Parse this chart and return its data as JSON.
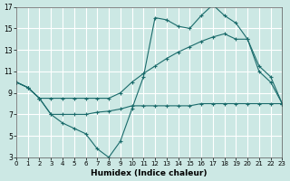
{
  "background_color": "#cce8e4",
  "grid_color": "#ffffff",
  "line_color": "#1a6b6b",
  "xlim": [
    0,
    23
  ],
  "ylim": [
    3,
    17
  ],
  "xticks": [
    0,
    1,
    2,
    3,
    4,
    5,
    6,
    7,
    8,
    9,
    10,
    11,
    12,
    13,
    14,
    15,
    16,
    17,
    18,
    19,
    20,
    21,
    22,
    23
  ],
  "yticks": [
    3,
    5,
    7,
    9,
    11,
    13,
    15,
    17
  ],
  "xlabel": "Humidex (Indice chaleur)",
  "line1_x": [
    0,
    1,
    2,
    3,
    4,
    5,
    6,
    7,
    8,
    9,
    10,
    11,
    12,
    13,
    14,
    15,
    16,
    17,
    18,
    19,
    20,
    21,
    22,
    23
  ],
  "line1_y": [
    10.0,
    9.5,
    8.5,
    7.0,
    6.2,
    5.7,
    5.2,
    3.8,
    3.0,
    4.5,
    7.5,
    10.5,
    16.0,
    15.8,
    15.2,
    15.0,
    16.2,
    17.2,
    16.2,
    15.5,
    14.0,
    11.0,
    10.0,
    8.0
  ],
  "line2_x": [
    0,
    1,
    2,
    3,
    4,
    5,
    6,
    7,
    8,
    9,
    10,
    11,
    12,
    13,
    14,
    15,
    16,
    17,
    18,
    19,
    20,
    21,
    22,
    23
  ],
  "line2_y": [
    10.0,
    9.5,
    8.5,
    8.5,
    8.5,
    8.5,
    8.5,
    8.5,
    8.5,
    9.0,
    10.0,
    10.8,
    11.5,
    12.2,
    12.8,
    13.3,
    13.8,
    14.2,
    14.5,
    14.0,
    14.0,
    11.5,
    10.5,
    8.0
  ],
  "line3_x": [
    0,
    1,
    2,
    3,
    4,
    5,
    6,
    7,
    8,
    9,
    10,
    11,
    12,
    13,
    14,
    15,
    16,
    17,
    18,
    19,
    20,
    21,
    22,
    23
  ],
  "line3_y": [
    10.0,
    9.5,
    8.5,
    7.0,
    7.0,
    7.0,
    7.0,
    7.2,
    7.3,
    7.5,
    7.8,
    7.8,
    7.8,
    7.8,
    7.8,
    7.8,
    8.0,
    8.0,
    8.0,
    8.0,
    8.0,
    8.0,
    8.0,
    8.0
  ]
}
